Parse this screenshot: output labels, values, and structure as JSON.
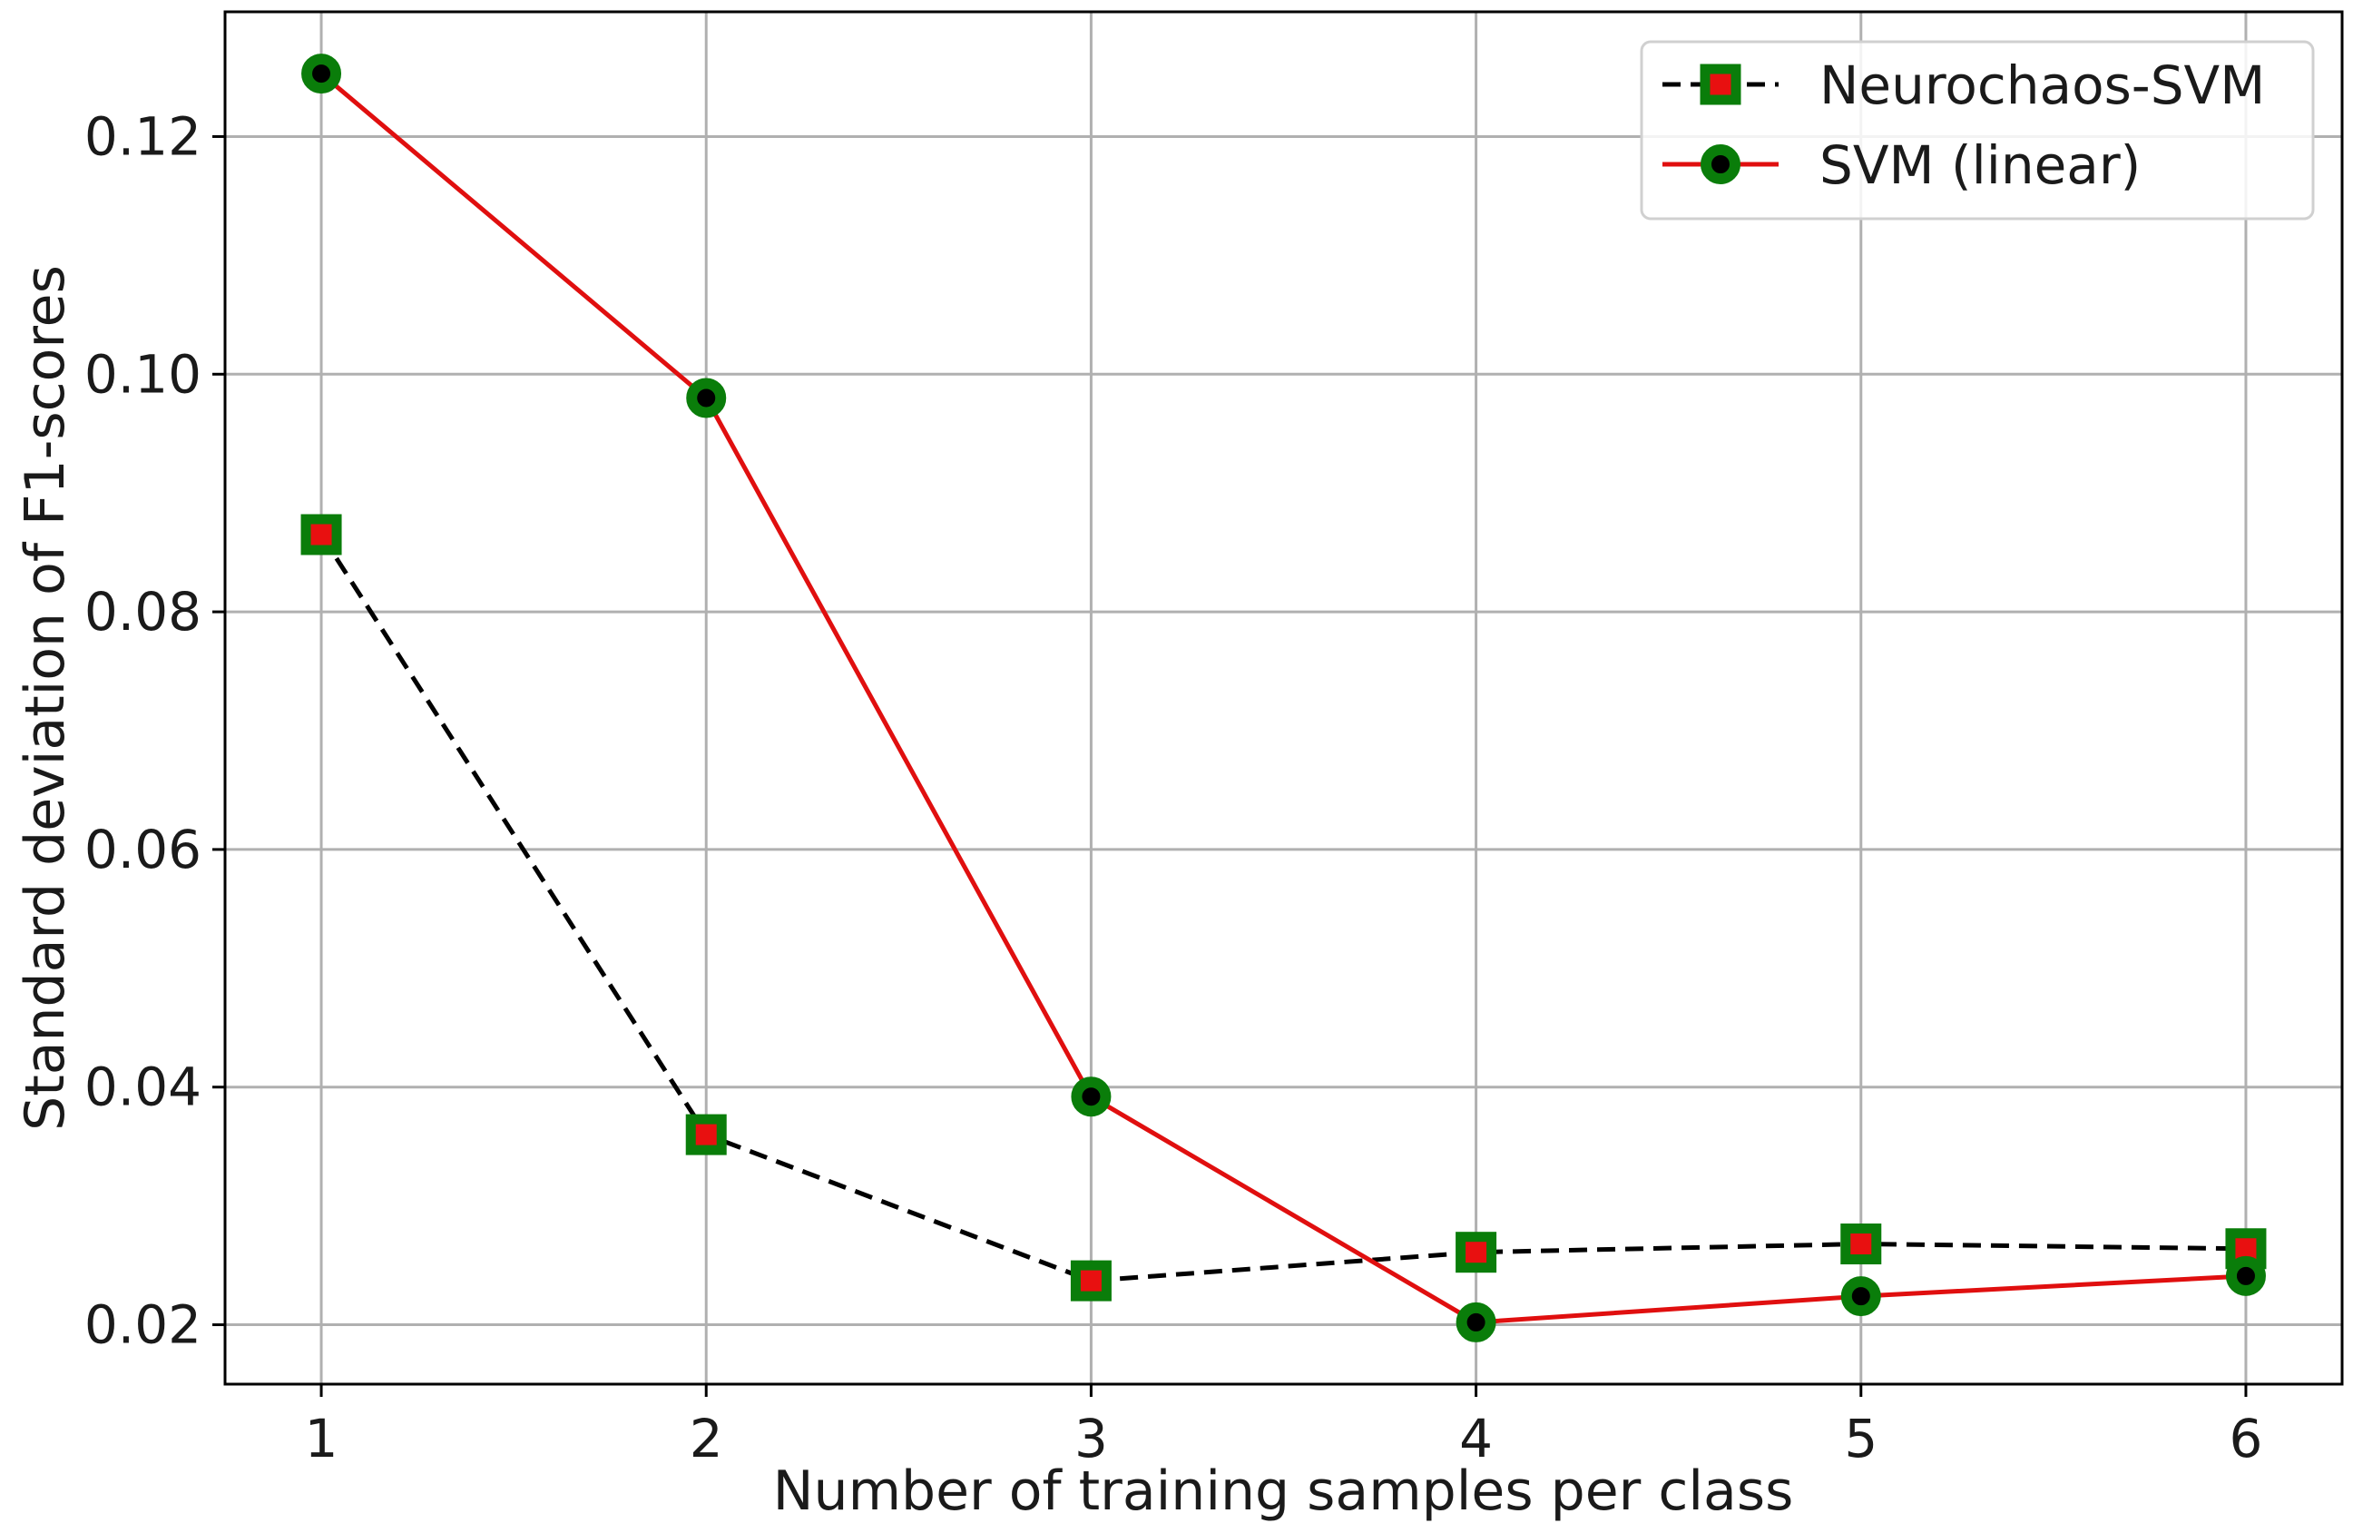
{
  "chart_data": {
    "type": "line",
    "xlabel": "Number of training samples per class",
    "ylabel": "Standard deviation of F1-scores",
    "x": [
      1,
      2,
      3,
      4,
      5,
      6
    ],
    "xticks": [
      "1",
      "2",
      "3",
      "4",
      "5",
      "6"
    ],
    "yticks": [
      "0.02",
      "0.04",
      "0.06",
      "0.08",
      "0.10",
      "0.12"
    ],
    "xlim": [
      0.75,
      6.25
    ],
    "ylim": [
      0.015,
      0.1305
    ],
    "grid": true,
    "legend_position": "top-right",
    "series": [
      {
        "name": "Neurochaos-SVM",
        "values": [
          0.0865,
          0.036,
          0.0237,
          0.0261,
          0.0268,
          0.0264
        ],
        "line_color": "#000000",
        "line_style": "dashed",
        "marker": "square",
        "marker_edge_color": "#0a7d0a",
        "marker_face_color": "#e81010"
      },
      {
        "name": "SVM (linear)",
        "values": [
          0.1253,
          0.098,
          0.0392,
          0.0202,
          0.0224,
          0.0241
        ],
        "line_color": "#e00f0f",
        "line_style": "solid",
        "marker": "circle",
        "marker_edge_color": "#0a7d0a",
        "marker_face_color": "#000000"
      }
    ]
  }
}
